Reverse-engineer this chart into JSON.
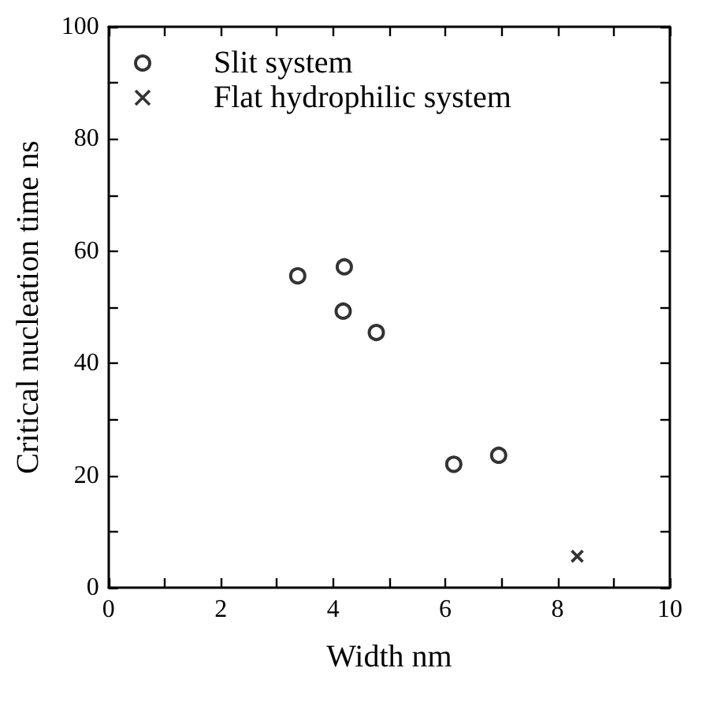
{
  "chart_data": {
    "type": "scatter",
    "xlabel": "Width nm",
    "ylabel": "Critical nucleation time ns",
    "xlim": [
      0,
      10
    ],
    "ylim": [
      0,
      100
    ],
    "xticks": [
      0,
      {
        "value": 1,
        "label": null
      },
      2,
      {
        "value": 3,
        "label": null
      },
      4,
      {
        "value": 5,
        "label": null
      },
      6,
      {
        "value": 7,
        "label": null
      },
      8,
      {
        "value": 9,
        "label": null
      },
      10
    ],
    "yticks": [
      0,
      {
        "value": 10,
        "label": null
      },
      20,
      {
        "value": 30,
        "label": null
      },
      40,
      {
        "value": 50,
        "label": null
      },
      60,
      {
        "value": 70,
        "label": null
      },
      80,
      {
        "value": 90,
        "label": null
      },
      100
    ],
    "grid": false,
    "legend": "top left",
    "series": [
      {
        "name": "Slit system",
        "color": "#000000",
        "marker": "circle",
        "x": [
          3.37,
          4.2,
          4.18,
          4.77,
          6.15,
          6.95
        ],
        "values": [
          55.6,
          57.2,
          49.3,
          45.5,
          22.0,
          23.6
        ]
      },
      {
        "name": "Flat hydrophilic system",
        "color": "#000000",
        "marker": "cross",
        "x": [
          8.35
        ],
        "values": [
          5.6
        ]
      }
    ]
  }
}
